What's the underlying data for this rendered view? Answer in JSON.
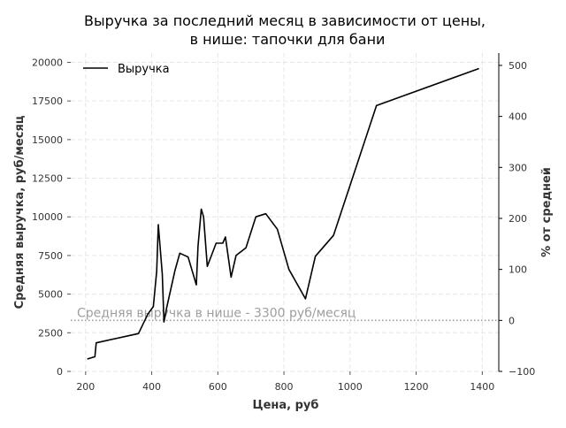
{
  "chart_data": {
    "type": "line",
    "title": [
      "Выручка за последний месяц в зависимости от цены,",
      "в нише: тапочки для бани"
    ],
    "xlabel": "Цена, руб",
    "ylabel": "Средняя выручка, руб/месяц",
    "ylabel_right": "% от средней",
    "xlim": [
      155,
      1450
    ],
    "ylim": [
      0,
      20600
    ],
    "ylim_right": [
      -100,
      524.2
    ],
    "x_ticks": [
      200,
      400,
      600,
      800,
      1000,
      1200,
      1400
    ],
    "y_ticks": [
      0,
      2500,
      5000,
      7500,
      10000,
      12500,
      15000,
      17500,
      20000
    ],
    "y_ticks_right": [
      -100,
      0,
      100,
      200,
      300,
      400,
      500
    ],
    "grid": true,
    "legend_position": "top-left",
    "series": [
      {
        "name": "Выручка",
        "color": "#000000",
        "x": [
          205,
          228,
          232,
          360,
          388,
          405,
          415,
          420,
          432,
          437,
          445,
          470,
          485,
          510,
          535,
          540,
          550,
          557,
          568,
          595,
          615,
          623,
          640,
          655,
          685,
          715,
          745,
          780,
          815,
          865,
          895,
          950,
          1080,
          1390
        ],
        "y": [
          800,
          950,
          1850,
          2450,
          3700,
          4200,
          6500,
          9500,
          6300,
          3200,
          4100,
          6500,
          7650,
          7400,
          5600,
          8100,
          10500,
          10000,
          6800,
          8300,
          8300,
          8700,
          6100,
          7500,
          8000,
          10000,
          10200,
          9200,
          6600,
          4700,
          7450,
          8800,
          17200,
          19600
        ]
      }
    ],
    "annotations": [
      {
        "text": "Средняя выручка в нише - 3300 руб/месяц",
        "y": 3300,
        "color": "#9e9e9e",
        "style": "dotted"
      }
    ]
  }
}
